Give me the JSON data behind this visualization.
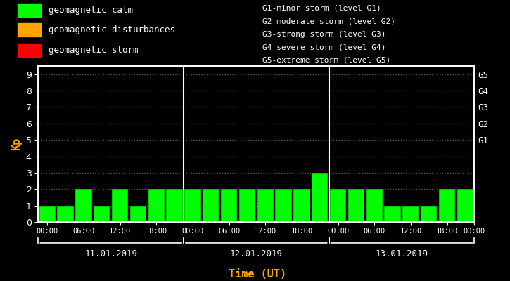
{
  "background_color": "#000000",
  "bar_color": "#00ff00",
  "bar_edge_color": "#000000",
  "text_color": "#ffffff",
  "orange_color": "#ffa500",
  "axis_color": "#ffffff",
  "kp_values": [
    1,
    1,
    2,
    1,
    2,
    1,
    2,
    2,
    2,
    2,
    2,
    2,
    2,
    2,
    2,
    3,
    2,
    2,
    2,
    1,
    1,
    1,
    2,
    2
  ],
  "day_labels": [
    "11.01.2019",
    "12.01.2019",
    "13.01.2019"
  ],
  "day_dividers": [
    8,
    16
  ],
  "xlabel": "Time (UT)",
  "ylabel": "Kp",
  "ylim": [
    0,
    9.5
  ],
  "yticks": [
    0,
    1,
    2,
    3,
    4,
    5,
    6,
    7,
    8,
    9
  ],
  "hour_tick_pos": [
    0,
    2,
    4,
    6,
    8,
    10,
    12,
    14,
    16,
    18,
    20,
    22,
    23.5
  ],
  "hour_tick_labels": [
    "00:00",
    "06:00",
    "12:00",
    "18:00",
    "00:00",
    "06:00",
    "12:00",
    "18:00",
    "00:00",
    "06:00",
    "12:00",
    "18:00",
    "00:00"
  ],
  "right_ytick_labels": [
    "G1",
    "G2",
    "G3",
    "G4",
    "G5"
  ],
  "right_ytick_positions": [
    5,
    6,
    7,
    8,
    9
  ],
  "legend_entries": [
    {
      "color": "#00ff00",
      "label": "geomagnetic calm"
    },
    {
      "color": "#ffa500",
      "label": "geomagnetic disturbances"
    },
    {
      "color": "#ff0000",
      "label": "geomagnetic storm"
    }
  ],
  "storm_legend_text": [
    "G1-minor storm (level G1)",
    "G2-moderate storm (level G2)",
    "G3-strong storm (level G3)",
    "G4-severe storm (level G4)",
    "G5-extreme storm (level G5)"
  ],
  "grid_color": "#ffffff",
  "grid_alpha": 0.35,
  "grid_linestyle": ":",
  "figsize": [
    7.25,
    4.0
  ],
  "dpi": 100
}
